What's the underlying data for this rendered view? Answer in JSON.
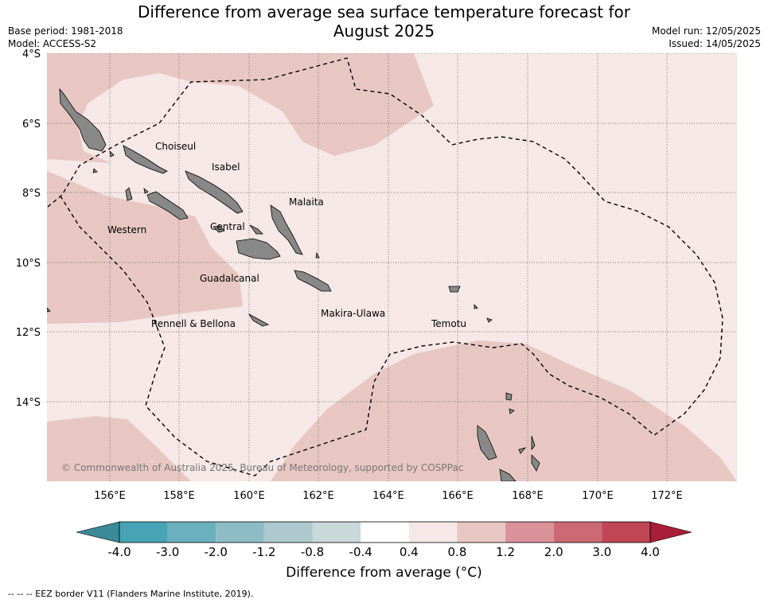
{
  "title_line1": "Difference from average sea surface temperature forecast for",
  "title_line2": "August 2025",
  "meta_left": {
    "base_period": "Base period: 1981-2018",
    "model": "Model: ACCESS-S2"
  },
  "meta_right": {
    "model_run": "Model run: 12/05/2025",
    "issued": "Issued: 14/05/2025"
  },
  "map": {
    "lat_labels": [
      "4°S",
      "6°S",
      "8°S",
      "10°S",
      "12°S",
      "14°S"
    ],
    "lon_labels": [
      "156°E",
      "158°E",
      "160°E",
      "162°E",
      "164°E",
      "166°E",
      "168°E",
      "170°E",
      "172°E"
    ],
    "lat_range": [
      -16.3,
      -4.0
    ],
    "lon_range": [
      154.2,
      174.0
    ],
    "provinces": [
      "Choiseul",
      "Isabel",
      "Malaita",
      "Western",
      "Central",
      "Guadalcanal",
      "Rennell & Bellona",
      "Makira-Ulawa",
      "Temotu"
    ],
    "copyright": "© Commonwealth of Australia 2025, Bureau of Meteorology, supported by COSPPac",
    "colors": {
      "band_0.4_0.8": "#f5e8e6",
      "band_0.8_1.2": "#e8c7c2",
      "land": "#888888",
      "eez_line": "#000000"
    }
  },
  "colorbar": {
    "ticks": [
      "-4.0",
      "-3.0",
      "-2.0",
      "-1.2",
      "-0.8",
      "-0.4",
      "0.4",
      "0.8",
      "1.2",
      "2.0",
      "3.0",
      "4.0"
    ],
    "colors": [
      "#3a8a98",
      "#47a3b5",
      "#6bb0be",
      "#8dbcc6",
      "#adc9cd",
      "#c9d8db",
      "#ffffff",
      "#f5e8e6",
      "#e8c7c2",
      "#d9919a",
      "#cb6a75",
      "#c04655",
      "#a81d37"
    ],
    "title": "Difference from average (°C)"
  },
  "eez_note": "--  --  -- EEZ border V11 (Flanders Marine Institute, 2019)."
}
